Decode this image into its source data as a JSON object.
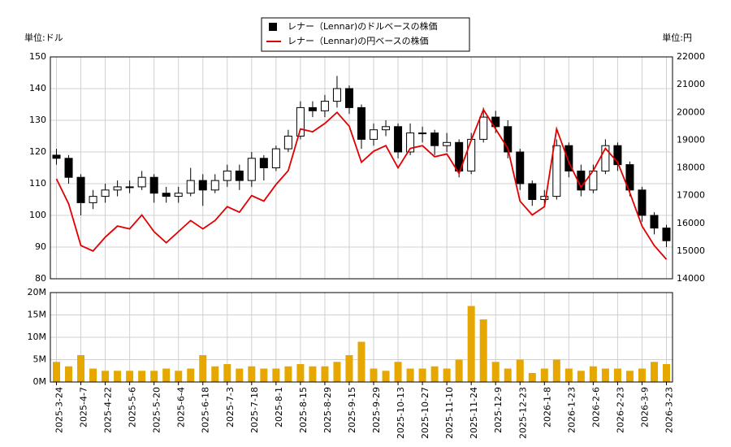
{
  "chart_data": [
    {
      "type": "candlestick",
      "ylabel": "単位:ドル",
      "y2label": "単位:円",
      "grid": true,
      "ylim": [
        80,
        150
      ],
      "yticks": [
        80,
        90,
        100,
        110,
        120,
        130,
        140,
        150
      ],
      "y2lim": [
        14000,
        22000
      ],
      "y2ticks": [
        14000,
        15000,
        16000,
        17000,
        18000,
        19000,
        20000,
        21000,
        22000
      ],
      "series": [
        {
          "name": "レナー（Lennar)のドルベースの株価",
          "color": "#000000",
          "open": [
            119,
            118,
            112,
            104,
            106,
            108,
            109,
            109,
            112,
            107,
            106,
            107,
            111,
            108,
            111,
            114,
            111,
            118,
            115,
            121,
            125,
            134,
            133,
            136,
            140,
            134,
            124,
            127,
            128,
            120,
            126,
            126,
            122,
            123,
            114,
            124,
            131,
            128,
            120,
            110,
            105,
            106,
            122,
            114,
            108,
            114,
            122,
            116,
            108,
            100,
            96
          ],
          "high": [
            121,
            119,
            113,
            108,
            110,
            111,
            111,
            114,
            113,
            109,
            109,
            115,
            113,
            113,
            116,
            116,
            120,
            119,
            122,
            127,
            136,
            136,
            138,
            144,
            141,
            135,
            129,
            130,
            129,
            129,
            128,
            127,
            126,
            124,
            126,
            134,
            133,
            130,
            121,
            111,
            108,
            124,
            123,
            116,
            116,
            124,
            123,
            117,
            109,
            101,
            97
          ],
          "low": [
            116,
            110,
            100,
            102,
            104,
            106,
            107,
            108,
            104,
            104,
            104,
            106,
            103,
            107,
            109,
            108,
            109,
            111,
            114,
            120,
            124,
            131,
            131,
            134,
            132,
            121,
            122,
            125,
            118,
            119,
            123,
            119,
            120,
            112,
            113,
            123,
            126,
            118,
            108,
            103,
            103,
            105,
            112,
            106,
            107,
            113,
            114,
            106,
            98,
            94,
            90
          ],
          "close": [
            118,
            112,
            104,
            106,
            108,
            109,
            109,
            112,
            107,
            106,
            107,
            111,
            108,
            111,
            114,
            111,
            118,
            115,
            121,
            125,
            134,
            133,
            136,
            140,
            134,
            124,
            127,
            128,
            120,
            126,
            126,
            122,
            123,
            114,
            124,
            131,
            128,
            120,
            110,
            105,
            106,
            122,
            114,
            108,
            114,
            122,
            116,
            108,
            100,
            96,
            92
          ]
        },
        {
          "name": "レナー（Lennar)の円ベースの株価",
          "color": "#e00000",
          "axis": "y2",
          "values": [
            17600,
            16700,
            15200,
            15000,
            15500,
            15900,
            15800,
            16300,
            15700,
            15300,
            15700,
            16100,
            15800,
            16100,
            16600,
            16400,
            17000,
            16800,
            17400,
            17900,
            19400,
            19300,
            19600,
            20000,
            19500,
            18200,
            18600,
            18800,
            18000,
            18700,
            18800,
            18400,
            18500,
            17800,
            19000,
            20100,
            19400,
            18700,
            16800,
            16300,
            16600,
            19400,
            18200,
            17300,
            17900,
            18700,
            18200,
            17100,
            15900,
            15200,
            14700
          ]
        }
      ]
    },
    {
      "type": "bar",
      "color": "#e6a800",
      "grid": true,
      "ylim": [
        0,
        20000000
      ],
      "yticks": [
        {
          "value": 0,
          "label": "0M"
        },
        {
          "value": 5000000,
          "label": "5M"
        },
        {
          "value": 10000000,
          "label": "10M"
        },
        {
          "value": 15000000,
          "label": "15M"
        },
        {
          "value": 20000000,
          "label": "20M"
        }
      ],
      "categories": [
        "2025-3-24",
        null,
        "2025-4-7",
        null,
        "2025-4-22",
        null,
        "2025-5-6",
        null,
        "2025-5-20",
        null,
        "2025-6-4",
        null,
        "2025-6-18",
        null,
        "2025-7-3",
        null,
        "2025-7-18",
        null,
        "2025-8-1",
        null,
        "2025-8-15",
        null,
        "2025-8-29",
        null,
        "2025-9-15",
        null,
        "2025-9-29",
        null,
        "2025-10-13",
        null,
        "2025-10-27",
        null,
        "2025-11-10",
        null,
        "2025-11-24",
        null,
        "2025-12-9",
        null,
        "2025-12-23",
        null,
        "2026-1-8",
        null,
        "2026-1-23",
        null,
        "2026-2-6",
        null,
        "2026-2-23",
        null,
        "2026-3-9",
        null,
        "2026-3-23"
      ],
      "values": [
        4500000,
        3500000,
        6000000,
        3000000,
        2500000,
        2500000,
        2500000,
        2500000,
        2500000,
        3000000,
        2500000,
        3000000,
        6000000,
        3500000,
        4000000,
        3000000,
        3500000,
        3000000,
        3000000,
        3500000,
        4000000,
        3500000,
        3500000,
        4500000,
        6000000,
        9000000,
        3000000,
        2500000,
        4500000,
        3000000,
        3000000,
        3500000,
        3000000,
        5000000,
        17000000,
        14000000,
        4500000,
        3000000,
        5000000,
        2000000,
        3000000,
        5000000,
        3000000,
        2500000,
        3500000,
        3000000,
        3000000,
        2500000,
        3000000,
        4500000,
        4000000
      ]
    }
  ]
}
